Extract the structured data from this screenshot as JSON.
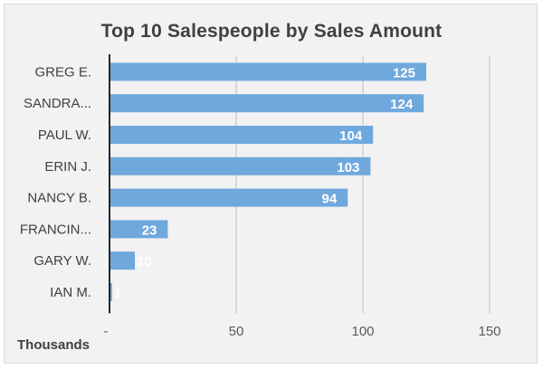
{
  "chart_data": {
    "type": "bar",
    "orientation": "horizontal",
    "title": "Top 10 Salespeople by Sales Amount",
    "unit_label": "Thousands",
    "categories": [
      "GREG E.",
      "SANDRA...",
      "PAUL W.",
      "ERIN J.",
      "NANCY B.",
      "FRANCIN...",
      "GARY W.",
      "IAN M."
    ],
    "values": [
      125,
      124,
      104,
      103,
      94,
      23,
      10,
      1
    ],
    "xlim": [
      0,
      150
    ],
    "x_ticks": [
      {
        "value": 0,
        "label": "-"
      },
      {
        "value": 50,
        "label": "50"
      },
      {
        "value": 100,
        "label": "100"
      },
      {
        "value": 150,
        "label": "150"
      }
    ],
    "grid": "vertical",
    "bar_color": "#6fa8dc",
    "data_labels": true
  }
}
